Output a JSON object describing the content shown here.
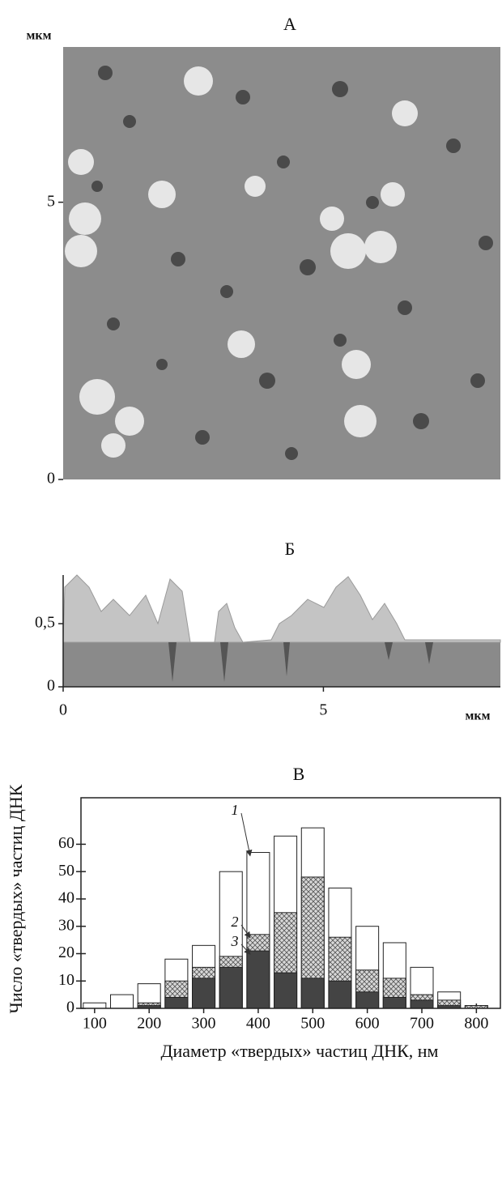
{
  "chart_data": [
    {
      "type": "image",
      "title": "А",
      "y_label": "мкм",
      "ylim": [
        0,
        7.8
      ],
      "yticks": [
        0,
        5
      ]
    },
    {
      "type": "image",
      "title": "Б",
      "x_label": "мкм",
      "xlim": [
        0,
        8.4
      ],
      "xticks": [
        0,
        5
      ],
      "ylim": [
        0,
        0.885
      ],
      "yticks": [
        0,
        {
          "value": 0.5,
          "label": "0,5"
        }
      ]
    },
    {
      "type": "bar",
      "title": "В",
      "x_label": "Диаметр «твердых» частиц ДНК, нм",
      "y_label": "Число «твердых» частиц ДНК",
      "x": [
        100,
        150,
        200,
        250,
        300,
        350,
        400,
        450,
        500,
        550,
        600,
        650,
        700,
        750,
        800
      ],
      "xlim": [
        75,
        844
      ],
      "xticks": [
        100,
        200,
        300,
        400,
        500,
        600,
        700,
        800
      ],
      "ylim": [
        0,
        77
      ],
      "yticks": [
        0,
        10,
        20,
        30,
        40,
        50,
        60
      ],
      "series": [
        {
          "name": "1",
          "color": "#ffffff",
          "values": [
            2,
            5,
            9,
            18,
            23,
            50,
            57,
            63,
            66,
            44,
            30,
            24,
            15,
            6,
            1
          ]
        },
        {
          "name": "2",
          "color": "hatch",
          "values": [
            0,
            0,
            2,
            10,
            15,
            19,
            27,
            35,
            48,
            26,
            14,
            11,
            5,
            3,
            1
          ]
        },
        {
          "name": "3",
          "color": "#444444",
          "values": [
            0,
            0,
            1,
            4,
            11,
            15,
            21,
            13,
            11,
            10,
            6,
            4,
            3,
            1,
            0
          ]
        }
      ]
    }
  ]
}
